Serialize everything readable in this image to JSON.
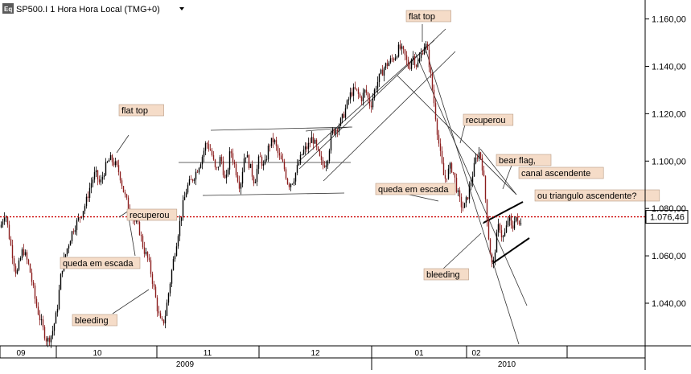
{
  "header": {
    "logo": "Eq",
    "title": "SP500.I 1 Hora Hora Local (TMG+0)",
    "dropdown_icon": "caret-down-icon"
  },
  "colors": {
    "up": "#000000",
    "down": "#8b1c1c",
    "price_line": "#cc0000",
    "label_bg": "#f5dcc8",
    "trendline": "#333333"
  },
  "chart_data": {
    "type": "candlestick",
    "ylim": [
      1022,
      1168
    ],
    "y_ticks": [
      "1.160,00",
      "1.140,00",
      "1.120,00",
      "1.100,00",
      "1.080,00",
      "1.060,00",
      "1.040,00"
    ],
    "y_tick_values": [
      1160,
      1140,
      1120,
      1100,
      1080,
      1060,
      1040
    ],
    "last_price": {
      "label": "1.076,46",
      "value": 1076.46
    },
    "x_month_labels": [
      "09",
      "10",
      "11",
      "12",
      "01",
      "02"
    ],
    "x_year_labels": [
      "2009",
      "2010"
    ],
    "price_path": [
      [
        0,
        1072
      ],
      [
        6,
        1079
      ],
      [
        12,
        1066
      ],
      [
        20,
        1052
      ],
      [
        28,
        1063
      ],
      [
        36,
        1055
      ],
      [
        44,
        1040
      ],
      [
        52,
        1030
      ],
      [
        58,
        1024
      ],
      [
        64,
        1027
      ],
      [
        70,
        1036
      ],
      [
        76,
        1054
      ],
      [
        82,
        1062
      ],
      [
        90,
        1071
      ],
      [
        98,
        1076
      ],
      [
        106,
        1082
      ],
      [
        112,
        1090
      ],
      [
        118,
        1095
      ],
      [
        124,
        1090
      ],
      [
        130,
        1097
      ],
      [
        136,
        1101
      ],
      [
        142,
        1099
      ],
      [
        148,
        1095
      ],
      [
        154,
        1086
      ],
      [
        160,
        1080
      ],
      [
        166,
        1075
      ],
      [
        172,
        1072
      ],
      [
        178,
        1063
      ],
      [
        184,
        1058
      ],
      [
        190,
        1048
      ],
      [
        196,
        1036
      ],
      [
        200,
        1031
      ],
      [
        204,
        1033
      ],
      [
        208,
        1042
      ],
      [
        214,
        1056
      ],
      [
        220,
        1068
      ],
      [
        226,
        1080
      ],
      [
        232,
        1089
      ],
      [
        238,
        1092
      ],
      [
        244,
        1096
      ],
      [
        250,
        1101
      ],
      [
        256,
        1108
      ],
      [
        262,
        1104
      ],
      [
        268,
        1095
      ],
      [
        274,
        1102
      ],
      [
        280,
        1090
      ],
      [
        286,
        1105
      ],
      [
        292,
        1097
      ],
      [
        298,
        1089
      ],
      [
        304,
        1104
      ],
      [
        310,
        1098
      ],
      [
        316,
        1091
      ],
      [
        322,
        1102
      ],
      [
        328,
        1097
      ],
      [
        334,
        1107
      ],
      [
        340,
        1109
      ],
      [
        346,
        1102
      ],
      [
        352,
        1098
      ],
      [
        358,
        1090
      ],
      [
        364,
        1092
      ],
      [
        370,
        1098
      ],
      [
        376,
        1104
      ],
      [
        382,
        1106
      ],
      [
        388,
        1110
      ],
      [
        394,
        1104
      ],
      [
        400,
        1098
      ],
      [
        406,
        1100
      ],
      [
        412,
        1112
      ],
      [
        418,
        1114
      ],
      [
        424,
        1117
      ],
      [
        430,
        1123
      ],
      [
        436,
        1129
      ],
      [
        442,
        1130
      ],
      [
        448,
        1126
      ],
      [
        454,
        1130
      ],
      [
        460,
        1123
      ],
      [
        466,
        1131
      ],
      [
        472,
        1136
      ],
      [
        478,
        1140
      ],
      [
        484,
        1142
      ],
      [
        490,
        1144
      ],
      [
        496,
        1148
      ],
      [
        502,
        1145
      ],
      [
        508,
        1139
      ],
      [
        512,
        1145
      ],
      [
        518,
        1140
      ],
      [
        524,
        1146
      ],
      [
        528,
        1150
      ],
      [
        532,
        1144
      ],
      [
        536,
        1133
      ],
      [
        540,
        1122
      ],
      [
        544,
        1110
      ],
      [
        548,
        1100
      ],
      [
        552,
        1092
      ],
      [
        556,
        1095
      ],
      [
        560,
        1098
      ],
      [
        564,
        1094
      ],
      [
        568,
        1087
      ],
      [
        572,
        1082
      ],
      [
        576,
        1080
      ],
      [
        580,
        1084
      ],
      [
        584,
        1090
      ],
      [
        588,
        1096
      ],
      [
        592,
        1102
      ],
      [
        596,
        1104
      ],
      [
        600,
        1096
      ],
      [
        604,
        1080
      ],
      [
        608,
        1064
      ],
      [
        612,
        1054
      ],
      [
        616,
        1066
      ],
      [
        620,
        1074
      ],
      [
        624,
        1067
      ],
      [
        628,
        1070
      ],
      [
        632,
        1077
      ],
      [
        636,
        1070
      ],
      [
        640,
        1078
      ],
      [
        644,
        1072
      ],
      [
        648,
        1076
      ]
    ],
    "annotations": [
      {
        "text": "flat top",
        "at": [
          185,
          1115
        ]
      },
      {
        "text": "recuperou",
        "at": [
          185,
          1076
        ]
      },
      {
        "text": "queda em escada",
        "at": [
          155,
          1059
        ]
      },
      {
        "text": "bleeding",
        "at": [
          75,
          1038
        ]
      },
      {
        "text": "flat top",
        "at": [
          525,
          1162
        ]
      },
      {
        "text": "recuperou",
        "at": [
          578,
          1114
        ]
      },
      {
        "text": "queda em escada",
        "at": [
          512,
          1086
        ]
      },
      {
        "text": "bleeding",
        "at": [
          550,
          1054
        ]
      },
      {
        "text": "bear flag,",
        "at": [
          642,
          1097
        ]
      },
      {
        "text": "canal ascendente",
        "at": [
          693,
          1092
        ]
      },
      {
        "text": "ou triangulo ascendente?",
        "at": [
          728,
          1084
        ]
      }
    ]
  }
}
